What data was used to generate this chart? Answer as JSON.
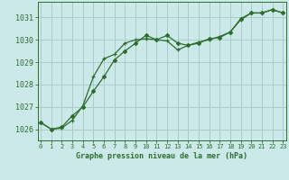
{
  "title": "Graphe pression niveau de la mer (hPa)",
  "background_color": "#cce9e9",
  "grid_color": "#aacccc",
  "line_color": "#2d6e2d",
  "xlim": [
    -0.3,
    23.3
  ],
  "ylim": [
    1025.5,
    1031.7
  ],
  "yticks": [
    1026,
    1027,
    1028,
    1029,
    1030,
    1031
  ],
  "xticks": [
    0,
    1,
    2,
    3,
    4,
    5,
    6,
    7,
    8,
    9,
    10,
    11,
    12,
    13,
    14,
    15,
    16,
    17,
    18,
    19,
    20,
    21,
    22,
    23
  ],
  "series1_x": [
    0,
    1,
    2,
    3,
    4,
    5,
    6,
    7,
    8,
    9,
    10,
    11,
    12,
    13,
    14,
    15,
    16,
    17,
    18,
    19,
    20,
    21,
    22,
    23
  ],
  "series1_y": [
    1026.3,
    1026.0,
    1026.1,
    1026.6,
    1027.0,
    1027.7,
    1028.35,
    1029.1,
    1029.5,
    1029.85,
    1030.2,
    1030.0,
    1030.2,
    1029.85,
    1029.75,
    1029.85,
    1030.05,
    1030.1,
    1030.35,
    1030.95,
    1031.2,
    1031.2,
    1031.35,
    1031.2
  ],
  "series2_x": [
    0,
    1,
    2,
    3,
    4,
    5,
    6,
    7,
    8,
    9,
    10,
    11,
    12,
    13,
    14,
    15,
    16,
    17,
    18,
    19,
    20,
    21,
    22,
    23
  ],
  "series2_y": [
    1026.3,
    1026.0,
    1026.05,
    1026.4,
    1027.05,
    1028.35,
    1029.15,
    1029.35,
    1029.85,
    1030.0,
    1030.05,
    1030.0,
    1029.95,
    1029.55,
    1029.75,
    1029.9,
    1030.0,
    1030.15,
    1030.35,
    1030.9,
    1031.2,
    1031.2,
    1031.35,
    1031.2
  ]
}
